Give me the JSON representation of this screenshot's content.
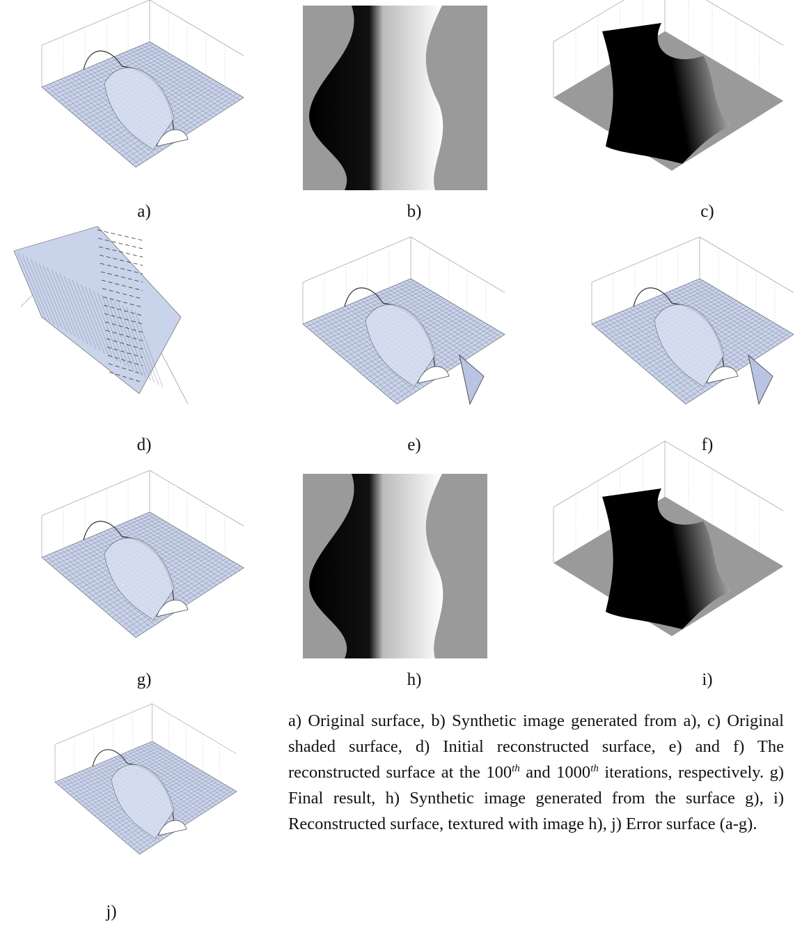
{
  "panels": [
    {
      "label": "a)"
    },
    {
      "label": "b)"
    },
    {
      "label": "c)"
    },
    {
      "label": "d)"
    },
    {
      "label": "e)"
    },
    {
      "label": "f)"
    },
    {
      "label": "g)"
    },
    {
      "label": "h)"
    },
    {
      "label": "i)"
    },
    {
      "label": "j)"
    }
  ],
  "caption": [
    "a) Original surface, b) Synthetic image generated from a), c) Original shaded surface, d) Initial reconstructed surface, e) and f) The reconstructed surface at the 100",
    "th",
    " and 1000",
    "th",
    " iterations, respectively. g) Final result, h) Synthetic image generated from the surface g), i) Reconstructed surface, textured with image h), j) Error surface (a-g)."
  ]
}
